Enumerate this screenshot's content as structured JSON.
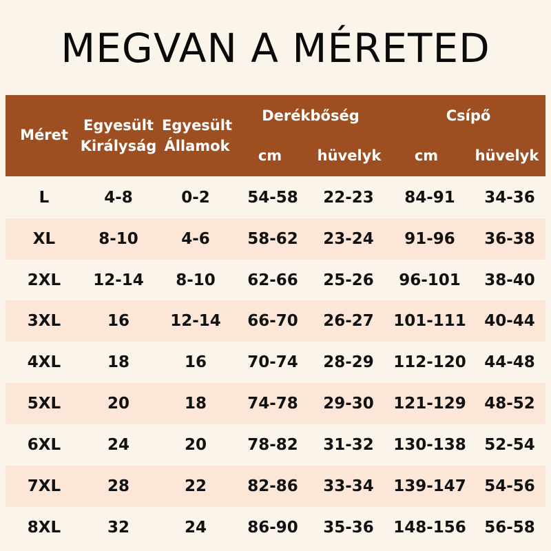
{
  "title": "MEGVAN A MÉRETED",
  "header": {
    "size": "Méret",
    "uk_line1": "Egyesült",
    "uk_line2": "Királyság",
    "us_line1": "Egyesült",
    "us_line2": "Államok",
    "waist": "Derékbőség",
    "waist_cm": "cm",
    "waist_inch": "hüvelyk",
    "hip": "Csípő",
    "hip_cm": "cm",
    "hip_inch": "hüvelyk"
  },
  "rows": [
    [
      "L",
      "4-8",
      "0-2",
      "54-58",
      "22-23",
      "84-91",
      "34-36"
    ],
    [
      "XL",
      "8-10",
      "4-6",
      "58-62",
      "23-24",
      "91-96",
      "36-38"
    ],
    [
      "2XL",
      "12-14",
      "8-10",
      "62-66",
      "25-26",
      "96-101",
      "38-40"
    ],
    [
      "3XL",
      "16",
      "12-14",
      "66-70",
      "26-27",
      "101-111",
      "40-44"
    ],
    [
      "4XL",
      "18",
      "16",
      "70-74",
      "28-29",
      "112-120",
      "44-48"
    ],
    [
      "5XL",
      "20",
      "18",
      "74-78",
      "29-30",
      "121-129",
      "48-52"
    ],
    [
      "6XL",
      "24",
      "20",
      "78-82",
      "31-32",
      "130-138",
      "52-54"
    ],
    [
      "7XL",
      "28",
      "22",
      "82-86",
      "33-34",
      "139-147",
      "54-56"
    ],
    [
      "8XL",
      "32",
      "24",
      "86-90",
      "35-36",
      "148-156",
      "56-58"
    ]
  ],
  "colors": {
    "background": "#fbf4ea",
    "header": "#9e4f22",
    "row_shade": "#fce6d8",
    "text": "#111111"
  }
}
